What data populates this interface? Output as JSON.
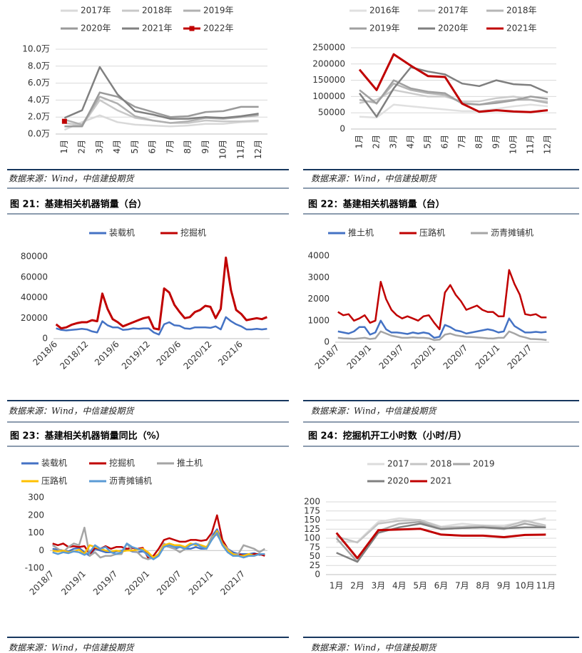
{
  "chart_data": [
    {
      "type": "line",
      "source": "数据来源：Wind，中信建投期货",
      "categories": [
        "1月",
        "2月",
        "3月",
        "4月",
        "5月",
        "6月",
        "7月",
        "8月",
        "9月",
        "10月",
        "11月",
        "12月"
      ],
      "ylim": [
        0,
        10
      ],
      "yticks": [
        {
          "value": 0,
          "label": "0.0万"
        },
        {
          "value": 2,
          "label": "2.0万"
        },
        {
          "value": 4,
          "label": "4.0万"
        },
        {
          "value": 6,
          "label": "6.0万"
        },
        {
          "value": 8,
          "label": "8.0万"
        },
        {
          "value": 10,
          "label": "10.0万"
        }
      ],
      "grid": true,
      "series": [
        {
          "name": "2017年",
          "color": "#d9d9d9",
          "values": [
            0.5,
            1.4,
            2.2,
            1.4,
            1.1,
            1.0,
            0.9,
            1.0,
            1.2,
            1.2,
            1.4,
            1.5
          ]
        },
        {
          "name": "2018年",
          "color": "#c8c8c8",
          "values": [
            1.3,
            1.0,
            4.0,
            2.8,
            1.9,
            1.6,
            1.3,
            1.3,
            1.6,
            1.5,
            1.5,
            1.6
          ]
        },
        {
          "name": "2019年",
          "color": "#b0b0b0",
          "values": [
            1.7,
            1.1,
            4.4,
            3.6,
            2.1,
            1.6,
            1.3,
            1.5,
            1.9,
            1.8,
            2.0,
            2.2
          ]
        },
        {
          "name": "2020年",
          "color": "#9a9a9a",
          "values": [
            0.9,
            0.9,
            4.9,
            4.4,
            3.2,
            2.6,
            2.0,
            2.1,
            2.6,
            2.7,
            3.2,
            3.2
          ]
        },
        {
          "name": "2021年",
          "color": "#808080",
          "values": [
            1.9,
            2.8,
            7.9,
            4.7,
            2.7,
            2.3,
            1.8,
            1.8,
            2.0,
            1.9,
            2.1,
            2.4
          ]
        },
        {
          "name": "2022年",
          "color": "#c00000",
          "marker": "square",
          "values": [
            1.5,
            null,
            null,
            null,
            null,
            null,
            null,
            null,
            null,
            null,
            null,
            null
          ]
        }
      ]
    },
    {
      "type": "line",
      "source": "数据来源：Wind，中信建投期货",
      "categories": [
        "1月",
        "2月",
        "3月",
        "4月",
        "5月",
        "6月",
        "7月",
        "8月",
        "9月",
        "10月",
        "11月",
        "12月"
      ],
      "ylim": [
        0,
        250000
      ],
      "yticks": [
        0,
        50000,
        100000,
        150000,
        200000,
        250000
      ],
      "grid": true,
      "series": [
        {
          "name": "2016年",
          "color": "#e0e0e0",
          "values": [
            38000,
            35000,
            75000,
            70000,
            65000,
            60000,
            55000,
            55000,
            62000,
            70000,
            75000,
            70000
          ]
        },
        {
          "name": "2017年",
          "color": "#cccccc",
          "values": [
            80000,
            90000,
            120000,
            110000,
            100000,
            100000,
            85000,
            85000,
            95000,
            100000,
            90000,
            85000
          ]
        },
        {
          "name": "2018年",
          "color": "#b5b5b5",
          "values": [
            90000,
            80000,
            140000,
            120000,
            110000,
            105000,
            80000,
            75000,
            85000,
            90000,
            90000,
            80000
          ]
        },
        {
          "name": "2019年",
          "color": "#a0a0a0",
          "values": [
            120000,
            78000,
            150000,
            125000,
            115000,
            110000,
            78000,
            75000,
            80000,
            88000,
            100000,
            93000
          ]
        },
        {
          "name": "2020年",
          "color": "#7f7f7f",
          "values": [
            110000,
            38000,
            125000,
            190000,
            177000,
            168000,
            140000,
            132000,
            150000,
            138000,
            135000,
            112000
          ]
        },
        {
          "name": "2021年",
          "color": "#c00000",
          "values": [
            183000,
            120000,
            230000,
            195000,
            163000,
            160000,
            78000,
            53000,
            58000,
            54000,
            52000,
            58000
          ]
        }
      ]
    },
    {
      "type": "line",
      "title": "图 21：基建相关机器销量（台）",
      "source": "数据来源：Wind，中信建投期货",
      "categories": [
        "2018/6",
        null,
        null,
        null,
        null,
        null,
        "2018/12",
        null,
        null,
        null,
        null,
        null,
        "2019/6",
        null,
        null,
        null,
        null,
        null,
        "2019/12",
        null,
        null,
        null,
        null,
        null,
        "2020/6",
        null,
        null,
        null,
        null,
        null,
        "2020/12",
        null,
        null,
        null,
        null,
        null,
        "2021/6",
        null,
        null,
        null,
        null,
        null
      ],
      "ylim": [
        0,
        80000
      ],
      "yticks": [
        0,
        20000,
        40000,
        60000,
        80000
      ],
      "grid": false,
      "series": [
        {
          "name": "装载机",
          "color": "#4472c4",
          "values": [
            10000,
            8500,
            8000,
            8500,
            9000,
            9500,
            9000,
            7000,
            6000,
            17000,
            13000,
            11000,
            11000,
            8500,
            9000,
            10000,
            9500,
            10000,
            10000,
            6000,
            4000,
            14000,
            16000,
            13000,
            12500,
            10000,
            9500,
            11000,
            11000,
            11000,
            10500,
            12000,
            9000,
            21000,
            17000,
            14000,
            12000,
            9000,
            9000,
            9500,
            9000,
            9500
          ]
        },
        {
          "name": "挖掘机",
          "color": "#c00000",
          "values": [
            14000,
            10000,
            11000,
            13500,
            15000,
            16000,
            16000,
            18000,
            17000,
            44000,
            29000,
            19000,
            16000,
            12000,
            14000,
            16000,
            18000,
            20000,
            21000,
            10000,
            9000,
            49000,
            45000,
            33000,
            26000,
            20000,
            21000,
            26000,
            28000,
            32000,
            31000,
            20000,
            29000,
            79000,
            47000,
            28000,
            24000,
            18000,
            19000,
            20000,
            19000,
            21000
          ]
        }
      ]
    },
    {
      "type": "line",
      "title": "图 22：基建相关机器销量（台）",
      "source": "数据来源：Wind，中信建投期货",
      "categories": [
        "2018/7",
        null,
        null,
        null,
        null,
        null,
        "2019/1",
        null,
        null,
        null,
        null,
        null,
        "2019/7",
        null,
        null,
        null,
        null,
        null,
        "2020/1",
        null,
        null,
        null,
        null,
        null,
        "2020/7",
        null,
        null,
        null,
        null,
        null,
        "2021/1",
        null,
        null,
        null,
        null,
        null,
        "2021/7",
        null,
        null,
        null
      ],
      "ylim": [
        0,
        4000
      ],
      "yticks": [
        0,
        1000,
        2000,
        3000,
        4000
      ],
      "grid": false,
      "series": [
        {
          "name": "推土机",
          "color": "#4472c4",
          "values": [
            500,
            450,
            400,
            500,
            700,
            700,
            350,
            450,
            1000,
            600,
            450,
            450,
            420,
            380,
            450,
            400,
            450,
            400,
            200,
            250,
            800,
            700,
            550,
            500,
            400,
            450,
            500,
            550,
            600,
            550,
            450,
            500,
            1100,
            750,
            600,
            450,
            450,
            480,
            450,
            480
          ]
        },
        {
          "name": "压路机",
          "color": "#c00000",
          "values": [
            1400,
            1250,
            1300,
            1000,
            1100,
            1250,
            900,
            1000,
            2800,
            2000,
            1500,
            1250,
            1100,
            1200,
            1100,
            1000,
            1200,
            1250,
            900,
            600,
            2300,
            2650,
            2200,
            1900,
            1500,
            1600,
            1700,
            1500,
            1400,
            1400,
            1200,
            1200,
            3350,
            2700,
            2200,
            1300,
            1250,
            1300,
            1150,
            1150
          ]
        },
        {
          "name": "沥青摊铺机",
          "color": "#a5a5a5",
          "values": [
            200,
            180,
            170,
            160,
            180,
            200,
            150,
            180,
            500,
            400,
            300,
            250,
            200,
            200,
            220,
            200,
            200,
            180,
            100,
            120,
            350,
            400,
            320,
            280,
            250,
            240,
            220,
            200,
            180,
            170,
            200,
            200,
            500,
            400,
            280,
            220,
            150,
            140,
            130,
            100
          ]
        }
      ]
    },
    {
      "type": "line",
      "title": "图 23：基建相关机器销量同比（%）",
      "source": "数据来源：Wind，中信建投期货",
      "categories": [
        "2018/7",
        null,
        null,
        null,
        null,
        null,
        "2019/1",
        null,
        null,
        null,
        null,
        null,
        "2019/7",
        null,
        null,
        null,
        null,
        null,
        "2020/1",
        null,
        null,
        null,
        null,
        null,
        "2020/7",
        null,
        null,
        null,
        null,
        null,
        "2021/1",
        null,
        null,
        null,
        null,
        null,
        "2021/7",
        null,
        null,
        null,
        null
      ],
      "ylim": [
        -100,
        300
      ],
      "yticks": [
        -100,
        0,
        100,
        200,
        300
      ],
      "grid": false,
      "series": [
        {
          "name": "装载机",
          "color": "#4472c4",
          "values": [
            10,
            5,
            0,
            -5,
            10,
            15,
            -10,
            -30,
            10,
            0,
            -10,
            -10,
            -5,
            0,
            5,
            -5,
            -10,
            -5,
            -20,
            -40,
            -20,
            30,
            20,
            10,
            20,
            10,
            10,
            20,
            10,
            10,
            80,
            120,
            50,
            10,
            -10,
            -20,
            -20,
            -20,
            -15,
            -25,
            -20
          ]
        },
        {
          "name": "挖掘机",
          "color": "#c00000",
          "values": [
            40,
            30,
            40,
            20,
            25,
            20,
            25,
            -20,
            15,
            10,
            25,
            10,
            20,
            20,
            10,
            15,
            10,
            15,
            -40,
            -30,
            10,
            60,
            70,
            60,
            50,
            50,
            60,
            60,
            55,
            60,
            100,
            200,
            60,
            10,
            -20,
            -20,
            -30,
            -30,
            -20,
            -20,
            -30
          ]
        },
        {
          "name": "推土机",
          "color": "#a5a5a5",
          "values": [
            30,
            10,
            -10,
            20,
            40,
            30,
            130,
            -30,
            -10,
            -40,
            -30,
            -30,
            -20,
            -20,
            40,
            0,
            -10,
            -40,
            -50,
            -40,
            -20,
            40,
            20,
            10,
            -10,
            10,
            30,
            40,
            30,
            10,
            80,
            90,
            40,
            10,
            -20,
            -20,
            30,
            20,
            10,
            -10,
            10
          ]
        },
        {
          "name": "压路机",
          "color": "#ffc000",
          "values": [
            0,
            -5,
            0,
            -10,
            -5,
            5,
            -20,
            30,
            20,
            10,
            0,
            -5,
            0,
            -5,
            0,
            0,
            5,
            10,
            -10,
            -40,
            -20,
            30,
            40,
            30,
            30,
            20,
            40,
            30,
            30,
            20,
            60,
            110,
            40,
            0,
            -20,
            -30,
            -30,
            -20,
            -30,
            -20,
            -20
          ]
        },
        {
          "name": "沥青摊铺机",
          "color": "#5b9bd5",
          "values": [
            -10,
            -20,
            -10,
            -15,
            -5,
            -10,
            -25,
            -10,
            30,
            10,
            20,
            -10,
            -20,
            -10,
            40,
            20,
            10,
            0,
            -30,
            -50,
            -30,
            20,
            30,
            20,
            20,
            10,
            30,
            40,
            20,
            10,
            60,
            100,
            30,
            -10,
            -30,
            -30,
            -40,
            -30,
            -30,
            -20,
            -20
          ]
        }
      ]
    },
    {
      "type": "line",
      "title": "图 24：挖掘机开工小时数（小时/月）",
      "source": "数据来源：Wind，中信建投期货",
      "categories": [
        "1月",
        "2月",
        "3月",
        "4月",
        "5月",
        "6月",
        "7月",
        "8月",
        "9月",
        "10月",
        "11月"
      ],
      "ylim": [
        0,
        200
      ],
      "yticks": [
        0,
        25,
        50,
        75,
        100,
        125,
        150,
        175,
        200
      ],
      "grid": true,
      "series": [
        {
          "name": "2017",
          "color": "#dcdcdc",
          "values": [
            90,
            90,
            145,
            155,
            150,
            132,
            140,
            135,
            135,
            145,
            155
          ]
        },
        {
          "name": "2018",
          "color": "#c4c4c4",
          "values": [
            105,
            88,
            140,
            148,
            150,
            130,
            132,
            135,
            130,
            148,
            135
          ]
        },
        {
          "name": "2019",
          "color": "#a6a6a6",
          "values": [
            100,
            35,
            120,
            140,
            145,
            125,
            128,
            130,
            125,
            140,
            130
          ]
        },
        {
          "name": "2020",
          "color": "#808080",
          "values": [
            60,
            35,
            115,
            130,
            140,
            125,
            128,
            130,
            127,
            130,
            130
          ]
        },
        {
          "name": "2021",
          "color": "#c00000",
          "values": [
            115,
            45,
            122,
            124,
            126,
            110,
            107,
            107,
            103,
            109,
            110
          ]
        }
      ]
    }
  ]
}
